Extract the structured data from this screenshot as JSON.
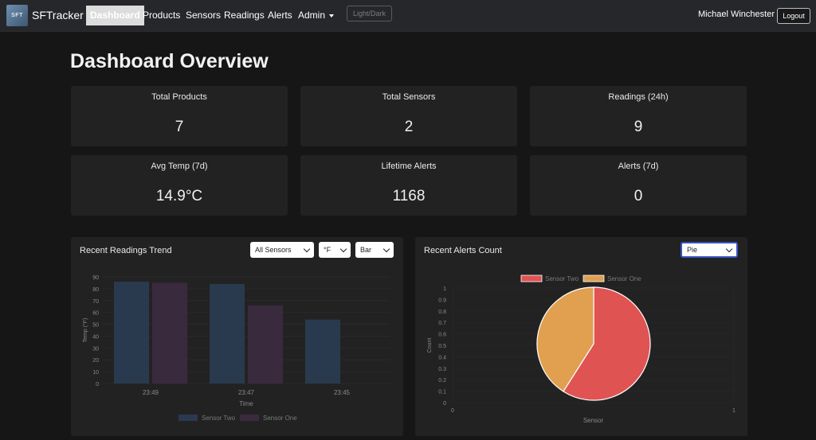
{
  "navbar": {
    "logo_text": "SFT",
    "brand": "SFTracker",
    "items": [
      {
        "label": "Dashboard"
      },
      {
        "label": "Products"
      },
      {
        "label": "Sensors"
      },
      {
        "label": "Readings"
      },
      {
        "label": "Alerts"
      },
      {
        "label": "Admin"
      }
    ],
    "theme_toggle": "Light/Dark",
    "user_name": "Michael Winchester",
    "logout": "Logout"
  },
  "page_title": "Dashboard Overview",
  "stats": [
    {
      "label": "Total Products",
      "value": "7"
    },
    {
      "label": "Total Sensors",
      "value": "2"
    },
    {
      "label": "Readings (24h)",
      "value": "9"
    },
    {
      "label": "Avg Temp (7d)",
      "value": "14.9°C"
    },
    {
      "label": "Lifetime Alerts",
      "value": "1168"
    },
    {
      "label": "Alerts (7d)",
      "value": "0"
    }
  ],
  "readings_panel": {
    "title": "Recent Readings Trend",
    "sensor_select": "All Sensors",
    "unit_select": "°F",
    "type_select": "Bar"
  },
  "alerts_panel": {
    "title": "Recent Alerts Count",
    "type_select": "Pie"
  },
  "chart_data": [
    {
      "type": "bar",
      "categories": [
        "23:49",
        "23:47",
        "23:45"
      ],
      "series": [
        {
          "name": "Sensor Two",
          "values": [
            86,
            84,
            54
          ],
          "color": "#2a3a4e"
        },
        {
          "name": "Sensor One",
          "values": [
            85,
            66,
            null
          ],
          "color": "#3a2a3e"
        }
      ],
      "xlabel": "Time",
      "ylabel": "Temp (°F)",
      "ylim": [
        0,
        90
      ],
      "yticks": [
        "0",
        "10",
        "20",
        "30",
        "40",
        "50",
        "60",
        "70",
        "80",
        "90"
      ],
      "legend": "bottom"
    },
    {
      "type": "pie",
      "series": [
        {
          "name": "Sensor Two",
          "value": 59,
          "color": "#e05353"
        },
        {
          "name": "Sensor One",
          "value": 41,
          "color": "#e0a050"
        }
      ],
      "xlabel": "Sensor",
      "ylabel": "Count",
      "yticks": [
        "0",
        "0.1",
        "0.2",
        "0.3",
        "0.4",
        "0.5",
        "0.6",
        "0.7",
        "0.8",
        "0.9",
        "1"
      ],
      "xticks": [
        "0",
        "1"
      ],
      "legend": "top"
    }
  ]
}
